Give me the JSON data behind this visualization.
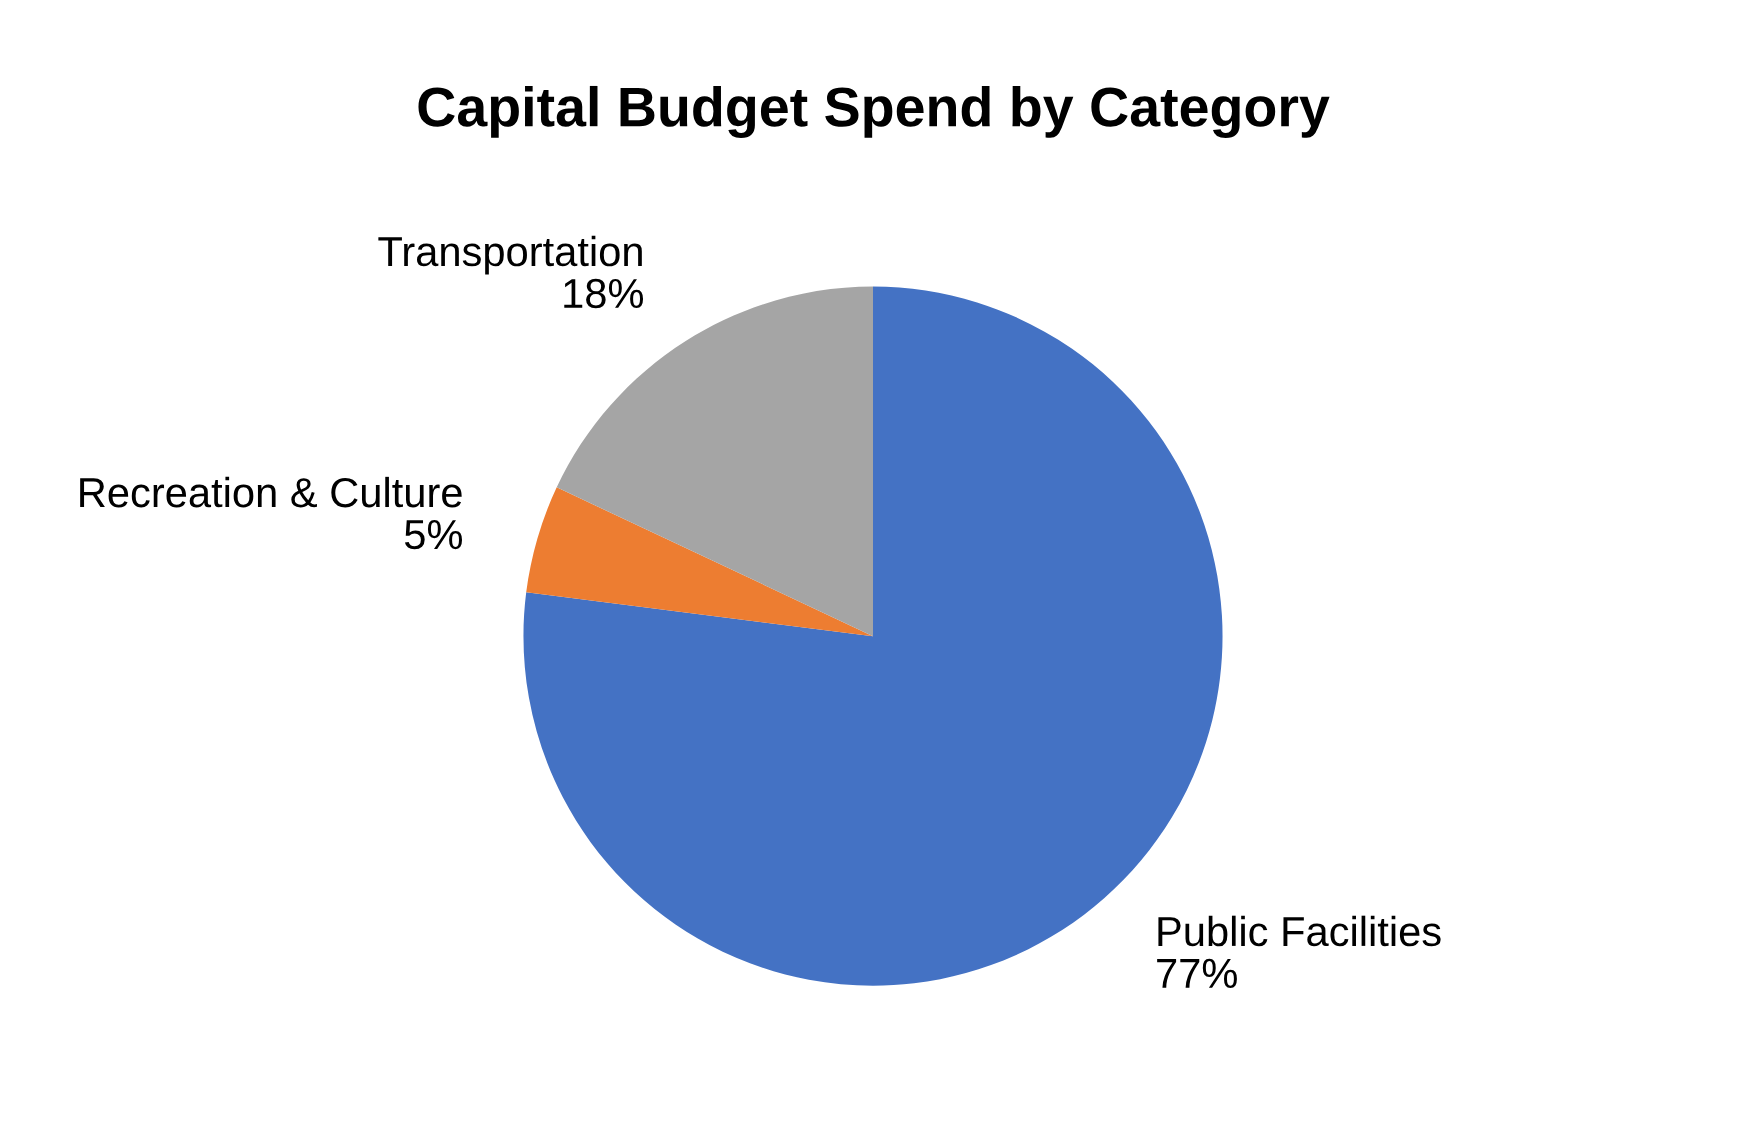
{
  "chart_data": {
    "type": "pie",
    "title": "Capital Budget Spend by Category",
    "categories": [
      "Public Facilities",
      "Recreation & Culture",
      "Transportation"
    ],
    "values": [
      77,
      5,
      18
    ],
    "value_labels": [
      "77%",
      "5%",
      "18%"
    ],
    "colors": [
      "#4472c4",
      "#ed7d31",
      "#a5a5a5"
    ],
    "legend": false
  }
}
